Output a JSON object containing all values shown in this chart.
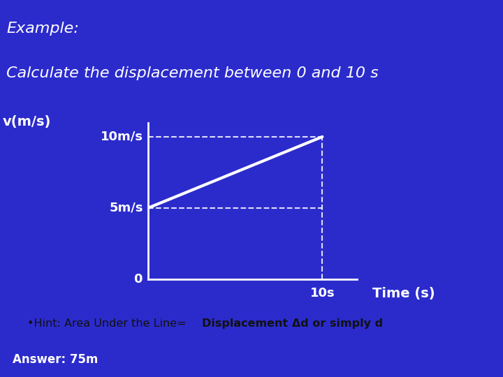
{
  "title_line1": "Example:",
  "title_line2": "Calculate the displacement between 0 and 10 s",
  "title_bg_color": "#E8530A",
  "title_text_color": "#FFFFFF",
  "main_bg_color": "#2B2BCC",
  "hint_bg_color": "#AAAAAA",
  "hint_text_normal": "•Hint: Area Under the Line=",
  "hint_text_bold": "Displacement Δd or simply d",
  "answer_text": "Answer: 75m",
  "answer_line_color": "#CC3300",
  "ylabel_text": "v(m/s)",
  "xlabel_text": "Time (s)",
  "x_label_at": "10s",
  "label_10ms": "10m/s",
  "label_5ms": "5m/s",
  "label_o": "0",
  "line_x": [
    0,
    10
  ],
  "line_y": [
    5,
    10
  ],
  "line_color": "#FFFFFF",
  "line_width": 3,
  "dashed_color": "#FFFFFF",
  "dashed_alpha": 0.85,
  "dashed_linewidth": 1.5,
  "axis_color": "#FFFFFF",
  "axis_linewidth": 2,
  "xlim": [
    0,
    12
  ],
  "ylim": [
    0,
    11
  ]
}
